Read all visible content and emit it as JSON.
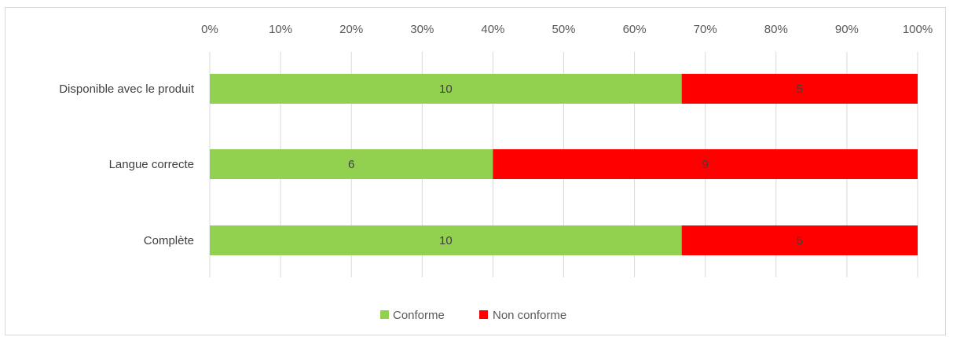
{
  "chart_data": {
    "type": "bar",
    "orientation": "horizontal",
    "stacked": "percent",
    "categories": [
      "Disponible avec le produit",
      "Langue correcte",
      "Complète"
    ],
    "series": [
      {
        "name": "Conforme",
        "values": [
          10,
          6,
          10
        ],
        "color": "#92d050"
      },
      {
        "name": "Non conforme",
        "values": [
          5,
          9,
          5
        ],
        "color": "#ff0000"
      }
    ],
    "x_ticks": [
      "0%",
      "10%",
      "20%",
      "30%",
      "40%",
      "50%",
      "60%",
      "70%",
      "80%",
      "90%",
      "100%"
    ],
    "xlim": [
      0,
      100
    ],
    "grid": true,
    "legend_position": "bottom"
  }
}
